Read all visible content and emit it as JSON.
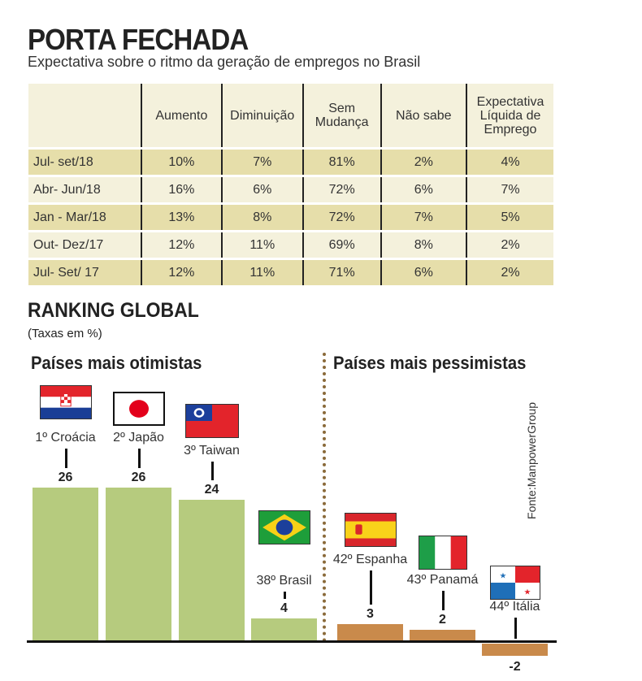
{
  "title": "PORTA FECHADA",
  "subtitle": "Expectativa sobre o ritmo da geração de empregos no Brasil",
  "table": {
    "headers": [
      "",
      "Aumento",
      "Diminuição",
      "Sem Mudança",
      "Não sabe",
      "Expectativa Líquida de Emprego"
    ],
    "rows": [
      [
        "Jul- set/18",
        "10%",
        "7%",
        "81%",
        "2%",
        "4%"
      ],
      [
        "Abr- Jun/18",
        "16%",
        "6%",
        "72%",
        "6%",
        "7%"
      ],
      [
        "Jan - Mar/18",
        "13%",
        "8%",
        "72%",
        "7%",
        "5%"
      ],
      [
        "Out- Dez/17",
        "12%",
        "11%",
        "69%",
        "8%",
        "2%"
      ],
      [
        "Jul- Set/ 17",
        "12%",
        "11%",
        "71%",
        "6%",
        "2%"
      ]
    ]
  },
  "chart_data": {
    "type": "bar",
    "title": "RANKING GLOBAL",
    "subtitle": "(Taxas em %)",
    "groups": [
      "Países mais otimistas",
      "Países mais pessimistas"
    ],
    "categories": [
      "1º Croácia",
      "2º Japão",
      "3º Taiwan",
      "38º Brasil",
      "42º Espanha",
      "43º Panamá",
      "44º Itália"
    ],
    "values": [
      26,
      26,
      24,
      4,
      3,
      2,
      -2
    ],
    "value_labels": [
      "26",
      "26",
      "24",
      "4",
      "3",
      "2",
      "-2"
    ],
    "flags": [
      "croatia-flag",
      "japan-flag",
      "taiwan-flag",
      "brazil-flag",
      "spain-flag",
      "italy-flag",
      "panama-flag"
    ],
    "colors": {
      "optimist": "#b6cb7e",
      "pessimist": "#c98a4b"
    },
    "ylim": [
      -2,
      26
    ]
  },
  "source": "Fonte:ManpowerGroup"
}
